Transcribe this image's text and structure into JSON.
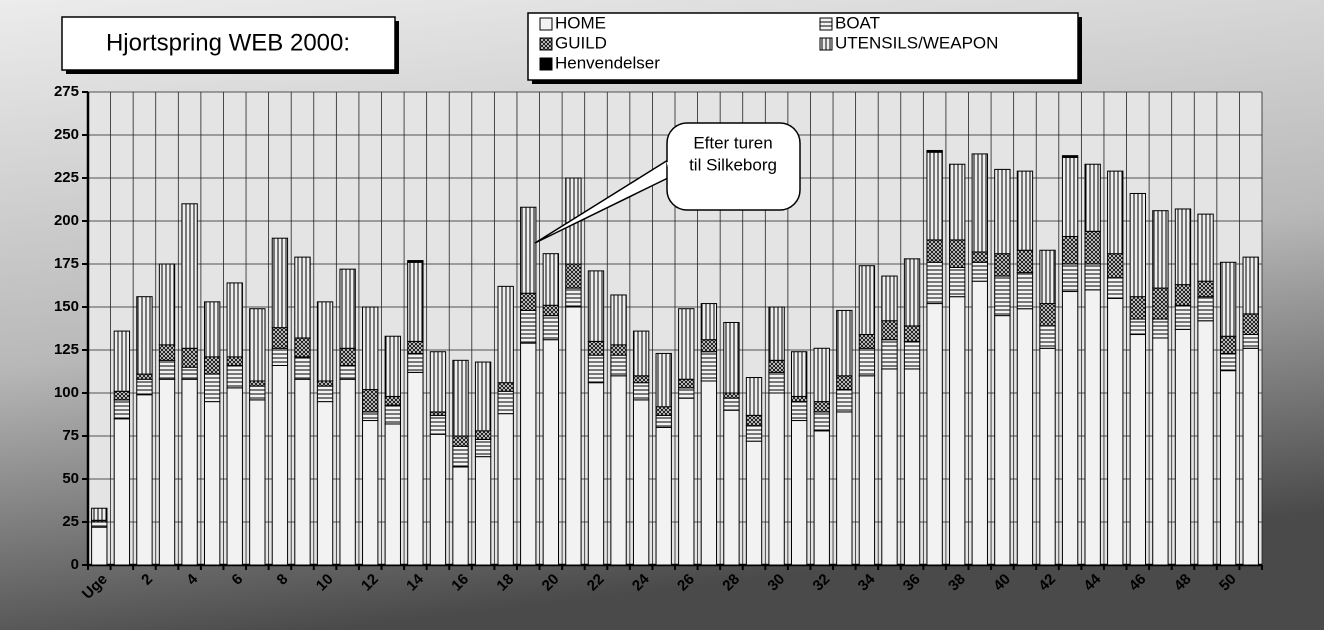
{
  "chart_data": {
    "type": "stacked_bar",
    "title": "Hjortspring WEB 2000:",
    "annotation": {
      "lines": [
        "Efter turen",
        "til Silkeborg"
      ]
    },
    "categories": [
      "Uge",
      null,
      "2",
      null,
      "4",
      null,
      "6",
      null,
      "8",
      null,
      "10",
      null,
      "12",
      null,
      "14",
      null,
      "16",
      null,
      "18",
      null,
      "20",
      null,
      "22",
      null,
      "24",
      null,
      "26",
      null,
      "28",
      null,
      "30",
      null,
      "32",
      null,
      "34",
      null,
      "36",
      null,
      "38",
      null,
      "40",
      null,
      "42",
      null,
      "44",
      null,
      "46",
      null,
      "48",
      null,
      "50",
      null
    ],
    "series": [
      {
        "name": "HOME",
        "color": "#f2f2f2",
        "pattern": "solid",
        "values": [
          22,
          85,
          99,
          108,
          108,
          95,
          103,
          96,
          116,
          108,
          95,
          108,
          84,
          82,
          112,
          76,
          57,
          63,
          88,
          129,
          131,
          150,
          106,
          110,
          96,
          80,
          97,
          107,
          90,
          72,
          100,
          84,
          78,
          89,
          110,
          114,
          114,
          152,
          156,
          165,
          145,
          149,
          126,
          159,
          160,
          155,
          134,
          132,
          137,
          142,
          113,
          126
        ]
      },
      {
        "name": "BOAT",
        "color": "#f2f2f2",
        "pattern": "horizontal",
        "values": [
          3,
          11,
          9,
          11,
          7,
          16,
          13,
          8,
          10,
          13,
          9,
          8,
          5,
          11,
          11,
          11,
          12,
          10,
          13,
          19,
          14,
          11,
          16,
          12,
          10,
          7,
          6,
          17,
          7,
          9,
          12,
          11,
          11,
          13,
          16,
          17,
          16,
          24,
          17,
          11,
          23,
          21,
          13,
          16,
          15,
          12,
          9,
          11,
          14,
          14,
          10,
          8
        ]
      },
      {
        "name": "GUILD",
        "color": "#cfcfcf",
        "pattern": "crosshatch",
        "values": [
          1,
          5,
          3,
          9,
          11,
          10,
          5,
          3,
          12,
          11,
          3,
          10,
          13,
          5,
          7,
          2,
          6,
          5,
          5,
          10,
          6,
          14,
          8,
          6,
          4,
          5,
          5,
          7,
          3,
          6,
          7,
          3,
          6,
          8,
          8,
          11,
          9,
          13,
          16,
          6,
          13,
          13,
          13,
          16,
          19,
          14,
          13,
          18,
          12,
          9,
          10,
          12
        ]
      },
      {
        "name": "UTENSILS/WEAPON",
        "color": "#e6e6e6",
        "pattern": "vertical",
        "values": [
          7,
          35,
          45,
          47,
          84,
          32,
          43,
          42,
          52,
          47,
          46,
          46,
          48,
          35,
          46,
          35,
          44,
          40,
          56,
          50,
          30,
          50,
          41,
          29,
          26,
          31,
          41,
          21,
          41,
          22,
          31,
          26,
          31,
          38,
          40,
          26,
          39,
          51,
          44,
          57,
          49,
          46,
          31,
          46,
          39,
          48,
          60,
          45,
          44,
          39,
          43,
          33
        ]
      },
      {
        "name": "Henvendelser",
        "color": "#000000",
        "pattern": "solid",
        "values": [
          0,
          0,
          0,
          0,
          0,
          0,
          0,
          0,
          0,
          0,
          0,
          0,
          0,
          0,
          1,
          0,
          0,
          0,
          0,
          0,
          0,
          0,
          0,
          0,
          0,
          0,
          0,
          0,
          0,
          0,
          0,
          0,
          0,
          0,
          0,
          0,
          0,
          1,
          0,
          0,
          0,
          0,
          0,
          1,
          0,
          0,
          0,
          0,
          0,
          0,
          0,
          0
        ]
      }
    ],
    "ylim": [
      0,
      275
    ],
    "yticks": [
      0,
      25,
      50,
      75,
      100,
      125,
      150,
      175,
      200,
      225,
      250,
      275
    ],
    "grid": true
  }
}
